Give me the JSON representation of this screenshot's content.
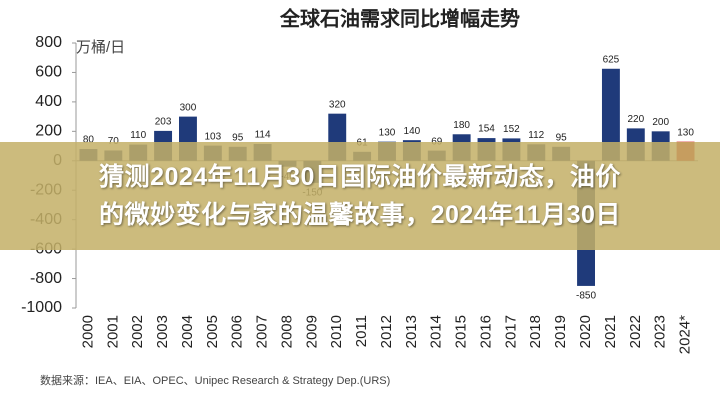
{
  "chart_data": {
    "type": "bar",
    "title": "全球石油需求同比增幅走势",
    "y_label": "万桶/日",
    "categories": [
      "2000",
      "2001",
      "2002",
      "2003",
      "2004",
      "2005",
      "2006",
      "2007",
      "2008",
      "2009",
      "2010",
      "2011",
      "2012",
      "2013",
      "2014",
      "2015",
      "2016",
      "2017",
      "2018",
      "2019",
      "2020",
      "2021",
      "2022",
      "2023",
      "2024*"
    ],
    "values": [
      80,
      70,
      110,
      203,
      300,
      103,
      95,
      114,
      -40,
      -150,
      320,
      61,
      130,
      140,
      69,
      180,
      154,
      152,
      112,
      95,
      -850,
      625,
      220,
      200,
      130
    ],
    "colors": [
      "#1f3a7a",
      "#1f3a7a",
      "#1f3a7a",
      "#1f3a7a",
      "#1f3a7a",
      "#1f3a7a",
      "#1f3a7a",
      "#1f3a7a",
      "#1f3a7a",
      "#1f3a7a",
      "#1f3a7a",
      "#1f3a7a",
      "#1f3a7a",
      "#1f3a7a",
      "#1f3a7a",
      "#1f3a7a",
      "#1f3a7a",
      "#1f3a7a",
      "#1f3a7a",
      "#1f3a7a",
      "#1f3a7a",
      "#1f3a7a",
      "#1f3a7a",
      "#1f3a7a",
      "#d42a2a"
    ],
    "ylim": [
      -1000,
      800
    ],
    "yticks": [
      800,
      600,
      400,
      200,
      0,
      -200,
      -400,
      -600,
      -800,
      -1000
    ],
    "source": "数据来源：IEA、EIA、OPEC、Unipec Research & Strategy Dep.(URS)"
  },
  "banner": {
    "line1": "猜测2024年11月30日国际油价最新动态，油价",
    "line2": "的微妙变化与家的温馨故事，2024年11月30日"
  }
}
